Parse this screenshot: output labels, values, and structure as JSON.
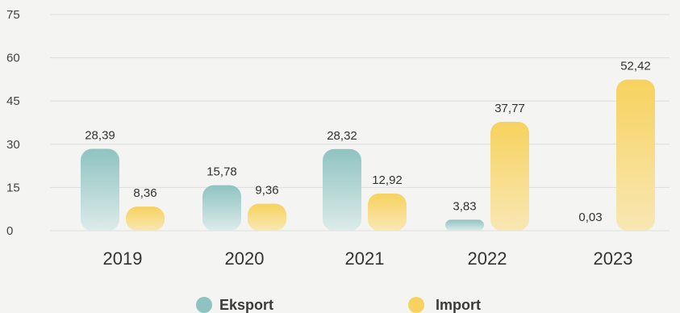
{
  "chart_data": {
    "type": "bar",
    "categories": [
      "2019",
      "2020",
      "2021",
      "2022",
      "2023"
    ],
    "series": [
      {
        "name": "Eksport",
        "values": [
          28.39,
          15.78,
          28.32,
          3.83,
          0.03
        ],
        "labels": [
          "28,39",
          "15,78",
          "28,32",
          "3,83",
          "0,03"
        ]
      },
      {
        "name": "Import",
        "values": [
          8.36,
          9.36,
          12.92,
          37.77,
          52.42
        ],
        "labels": [
          "8,36",
          "9,36",
          "12,92",
          "37,77",
          "52,42"
        ]
      }
    ],
    "yticks": [
      0,
      15,
      30,
      45,
      60,
      75
    ],
    "ylim": [
      0,
      75
    ],
    "grid": true,
    "legend": "bottom-center",
    "colors": {
      "Eksport_top": "#8fc3c1",
      "Eksport_bottom": "#dcebea",
      "Import_top": "#f7d25e",
      "Import_bottom": "#f8e7b4"
    }
  }
}
